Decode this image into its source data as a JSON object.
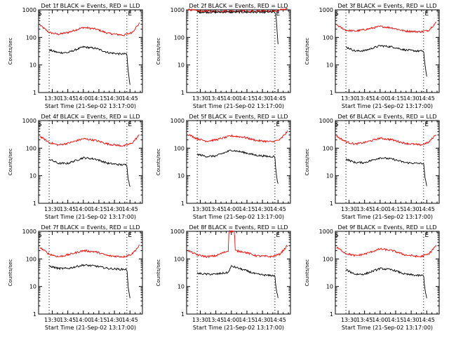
{
  "chart_data": [
    {
      "type": "line",
      "title": "Det 1f BLACK = Events, RED = LLD",
      "xlabel": "Start Time (21-Sep-02 13:17:00)",
      "ylabel": "Counts/sec",
      "x_unit": "minutes",
      "xlim": [
        13.28,
        14.95
      ],
      "ylim": [
        1,
        1000
      ],
      "y_log": true,
      "x_ticks": [
        "13:30",
        "13:45",
        "14:00",
        "14:15",
        "14:30",
        "14:45"
      ],
      "y_ticks": [
        "1",
        "10",
        "100",
        "1000"
      ],
      "markers": [
        {
          "label": "S",
          "x": 13.3
        },
        {
          "label": "E",
          "x": 14.75
        }
      ],
      "dotted_lines": [
        13.45,
        14.7
      ],
      "series": [
        {
          "color": "#ff0000",
          "x": [
            13.3,
            13.45,
            13.6,
            13.75,
            14.0,
            14.2,
            14.4,
            14.65,
            14.78,
            14.9
          ],
          "values": [
            280,
            150,
            130,
            150,
            230,
            200,
            140,
            120,
            150,
            320
          ]
        },
        {
          "color": "#000000",
          "x": [
            13.45,
            13.6,
            13.75,
            14.0,
            14.2,
            14.4,
            14.6,
            14.7,
            14.72,
            14.75
          ],
          "values": [
            35,
            28,
            28,
            45,
            40,
            28,
            25,
            25,
            6,
            2
          ]
        }
      ]
    },
    {
      "type": "line",
      "title": "Det 2f BLACK = Events, RED = LLD",
      "xlabel": "Start Time (21-Sep-02 13:17:00)",
      "ylabel": "Counts/sec",
      "x_unit": "minutes",
      "xlim": [
        13.28,
        14.95
      ],
      "ylim": [
        1,
        1000
      ],
      "y_log": true,
      "x_ticks": [
        "13:30",
        "13:45",
        "14:00",
        "14:15",
        "14:30",
        "14:45"
      ],
      "y_ticks": [
        "1",
        "10",
        "100",
        "1000"
      ],
      "markers": [
        {
          "label": "E",
          "x": 14.75
        }
      ],
      "dotted_lines": [
        13.45,
        14.7
      ],
      "series": [
        {
          "color": "#ff0000",
          "x": [
            13.3,
            13.45,
            13.6,
            14.0,
            14.4,
            14.7,
            14.8,
            14.9
          ],
          "values": [
            1050,
            900,
            880,
            900,
            880,
            900,
            1000,
            1100
          ]
        },
        {
          "color": "#000000",
          "x": [
            13.45,
            13.6,
            14.0,
            14.4,
            14.7,
            14.72,
            14.75
          ],
          "values": [
            830,
            820,
            830,
            820,
            830,
            500,
            60
          ]
        }
      ]
    },
    {
      "type": "line",
      "title": "Det 3f BLACK = Events, RED = LLD",
      "xlabel": "Start Time (21-Sep-02 13:17:00)",
      "ylabel": "Counts/sec",
      "x_unit": "minutes",
      "xlim": [
        13.28,
        14.95
      ],
      "ylim": [
        1,
        1000
      ],
      "y_log": true,
      "x_ticks": [
        "13:30",
        "13:45",
        "14:00",
        "14:15",
        "14:30",
        "14:45"
      ],
      "y_ticks": [
        "1",
        "10",
        "100",
        "1000"
      ],
      "markers": [
        {
          "label": "S",
          "x": 13.3
        },
        {
          "label": "E",
          "x": 14.75
        }
      ],
      "dotted_lines": [
        13.45,
        14.7
      ],
      "series": [
        {
          "color": "#ff0000",
          "x": [
            13.3,
            13.45,
            13.6,
            13.75,
            14.0,
            14.2,
            14.4,
            14.65,
            14.78,
            14.9
          ],
          "values": [
            280,
            180,
            170,
            190,
            250,
            220,
            170,
            160,
            180,
            350
          ]
        },
        {
          "color": "#000000",
          "x": [
            13.45,
            13.6,
            13.75,
            14.0,
            14.2,
            14.4,
            14.6,
            14.7,
            14.72,
            14.75
          ],
          "values": [
            45,
            32,
            33,
            50,
            45,
            35,
            32,
            32,
            10,
            4
          ]
        }
      ]
    },
    {
      "type": "line",
      "title": "Det 4f BLACK = Events, RED = LLD",
      "xlabel": "Start Time (21-Sep-02 13:17:00)",
      "ylabel": "Counts/sec",
      "x_unit": "minutes",
      "xlim": [
        13.28,
        14.95
      ],
      "ylim": [
        1,
        1000
      ],
      "y_log": true,
      "x_ticks": [
        "13:30",
        "13:45",
        "14:00",
        "14:15",
        "14:30",
        "14:45"
      ],
      "y_ticks": [
        "1",
        "10",
        "100",
        "1000"
      ],
      "markers": [
        {
          "label": "S",
          "x": 13.3
        },
        {
          "label": "E",
          "x": 14.75
        }
      ],
      "dotted_lines": [
        13.45,
        14.7
      ],
      "series": [
        {
          "color": "#ff0000",
          "x": [
            13.3,
            13.45,
            13.6,
            13.75,
            14.0,
            14.2,
            14.4,
            14.65,
            14.78,
            14.9
          ],
          "values": [
            270,
            160,
            130,
            150,
            220,
            190,
            140,
            120,
            150,
            300
          ]
        },
        {
          "color": "#000000",
          "x": [
            13.45,
            13.6,
            13.75,
            14.0,
            14.2,
            14.4,
            14.6,
            14.7,
            14.72,
            14.75
          ],
          "values": [
            40,
            28,
            28,
            45,
            40,
            28,
            25,
            25,
            8,
            4
          ]
        }
      ]
    },
    {
      "type": "line",
      "title": "Det 5f BLACK = Events, RED = LLD",
      "xlabel": "Start Time (21-Sep-02 13:17:00)",
      "ylabel": "Counts/sec",
      "x_unit": "minutes",
      "xlim": [
        13.28,
        14.95
      ],
      "ylim": [
        1,
        1000
      ],
      "y_log": true,
      "x_ticks": [
        "13:30",
        "13:45",
        "14:00",
        "14:15",
        "14:30",
        "14:45"
      ],
      "y_ticks": [
        "1",
        "10",
        "100",
        "1000"
      ],
      "markers": [
        {
          "label": "E",
          "x": 14.75
        }
      ],
      "dotted_lines": [
        13.45,
        14.7
      ],
      "series": [
        {
          "color": "#ff0000",
          "x": [
            13.3,
            13.45,
            13.6,
            13.75,
            14.0,
            14.2,
            14.4,
            14.65,
            14.78,
            14.9
          ],
          "values": [
            320,
            220,
            180,
            200,
            280,
            250,
            190,
            170,
            200,
            400
          ]
        },
        {
          "color": "#000000",
          "x": [
            13.45,
            13.6,
            13.75,
            14.0,
            14.2,
            14.4,
            14.6,
            14.7,
            14.72,
            14.75
          ],
          "values": [
            60,
            50,
            52,
            85,
            70,
            55,
            50,
            50,
            12,
            5
          ]
        }
      ]
    },
    {
      "type": "line",
      "title": "Det 6f BLACK = Events, RED = LLD",
      "xlabel": "Start Time (21-Sep-02 13:17:00)",
      "ylabel": "Counts/sec",
      "x_unit": "minutes",
      "xlim": [
        13.28,
        14.95
      ],
      "ylim": [
        1,
        1000
      ],
      "y_log": true,
      "x_ticks": [
        "13:30",
        "13:45",
        "14:00",
        "14:15",
        "14:30",
        "14:45"
      ],
      "y_ticks": [
        "1",
        "10",
        "100",
        "1000"
      ],
      "markers": [
        {
          "label": "S",
          "x": 13.3
        },
        {
          "label": "E",
          "x": 14.75
        }
      ],
      "dotted_lines": [
        13.45,
        14.7
      ],
      "series": [
        {
          "color": "#ff0000",
          "x": [
            13.3,
            13.45,
            13.6,
            13.75,
            14.0,
            14.2,
            14.4,
            14.65,
            14.78,
            14.9
          ],
          "values": [
            270,
            170,
            140,
            160,
            230,
            200,
            150,
            130,
            160,
            320
          ]
        },
        {
          "color": "#000000",
          "x": [
            13.45,
            13.6,
            13.75,
            14.0,
            14.2,
            14.4,
            14.6,
            14.7,
            14.72,
            14.75
          ],
          "values": [
            40,
            30,
            30,
            45,
            40,
            30,
            28,
            28,
            9,
            4
          ]
        }
      ]
    },
    {
      "type": "line",
      "title": "Det 7f BLACK = Events, RED = LLD",
      "xlabel": "Start Time (21-Sep-02 13:17:00)",
      "ylabel": "Counts/sec",
      "x_unit": "minutes",
      "xlim": [
        13.28,
        14.95
      ],
      "ylim": [
        1,
        1000
      ],
      "y_log": true,
      "x_ticks": [
        "13:30",
        "13:45",
        "14:00",
        "14:15",
        "14:30",
        "14:45"
      ],
      "y_ticks": [
        "1",
        "10",
        "100",
        "1000"
      ],
      "markers": [
        {
          "label": "S",
          "x": 13.3
        },
        {
          "label": "E",
          "x": 14.75
        }
      ],
      "dotted_lines": [
        13.45,
        14.7
      ],
      "series": [
        {
          "color": "#ff0000",
          "x": [
            13.3,
            13.45,
            13.6,
            13.75,
            14.0,
            14.2,
            14.4,
            14.65,
            14.78,
            14.9
          ],
          "values": [
            260,
            150,
            120,
            140,
            200,
            180,
            130,
            120,
            150,
            300
          ]
        },
        {
          "color": "#000000",
          "x": [
            13.45,
            13.6,
            13.75,
            14.0,
            14.2,
            14.4,
            14.6,
            14.7,
            14.72,
            14.75
          ],
          "values": [
            55,
            45,
            45,
            60,
            55,
            45,
            42,
            42,
            10,
            4
          ]
        }
      ]
    },
    {
      "type": "line",
      "title": "Det 8f BLACK = Events, RED = LLD",
      "xlabel": "Start Time (21-Sep-02 13:17:00)",
      "ylabel": "Counts/sec",
      "x_unit": "minutes",
      "xlim": [
        13.28,
        14.95
      ],
      "ylim": [
        1,
        1000
      ],
      "y_log": true,
      "x_ticks": [
        "13:30",
        "13:45",
        "14:00",
        "14:15",
        "14:30",
        "14:45"
      ],
      "y_ticks": [
        "1",
        "10",
        "100",
        "1000"
      ],
      "markers": [
        {
          "label": "E",
          "x": 14.75
        }
      ],
      "dotted_lines": [
        13.45,
        14.7
      ],
      "series": [
        {
          "color": "#ff0000",
          "x": [
            13.3,
            13.45,
            13.6,
            13.75,
            13.95,
            13.96,
            14.05,
            14.06,
            14.2,
            14.4,
            14.65,
            14.78,
            14.9
          ],
          "values": [
            200,
            140,
            120,
            130,
            200,
            1000,
            1000,
            200,
            180,
            130,
            120,
            150,
            300
          ]
        },
        {
          "color": "#000000",
          "x": [
            13.45,
            13.6,
            13.75,
            13.95,
            14.0,
            14.2,
            14.4,
            14.6,
            14.7,
            14.72,
            14.75
          ],
          "values": [
            30,
            28,
            28,
            32,
            55,
            40,
            28,
            25,
            25,
            8,
            4
          ]
        }
      ]
    },
    {
      "type": "line",
      "title": "Det 9f BLACK = Events, RED = LLD",
      "xlabel": "Start Time (21-Sep-02 13:17:00)",
      "ylabel": "Counts/sec",
      "x_unit": "minutes",
      "xlim": [
        13.28,
        14.95
      ],
      "ylim": [
        1,
        1000
      ],
      "y_log": true,
      "x_ticks": [
        "13:30",
        "13:45",
        "14:00",
        "14:15",
        "14:30",
        "14:45"
      ],
      "y_ticks": [
        "1",
        "10",
        "100",
        "1000"
      ],
      "markers": [
        {
          "label": "S",
          "x": 13.3
        },
        {
          "label": "E",
          "x": 14.75
        }
      ],
      "dotted_lines": [
        13.45,
        14.7
      ],
      "series": [
        {
          "color": "#ff0000",
          "x": [
            13.3,
            13.45,
            13.6,
            13.75,
            14.0,
            14.2,
            14.4,
            14.65,
            14.78,
            14.9
          ],
          "values": [
            260,
            160,
            130,
            150,
            230,
            200,
            140,
            120,
            150,
            300
          ]
        },
        {
          "color": "#000000",
          "x": [
            13.45,
            13.6,
            13.75,
            14.0,
            14.2,
            14.4,
            14.6,
            14.7,
            14.72,
            14.75
          ],
          "values": [
            40,
            28,
            28,
            45,
            40,
            28,
            25,
            25,
            8,
            4
          ]
        }
      ]
    }
  ]
}
